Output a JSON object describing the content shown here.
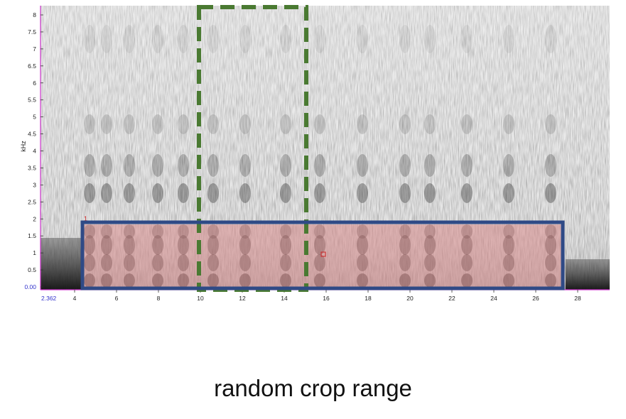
{
  "spectrogram": {
    "y_axis_label": "kHz",
    "y_ticks": [
      "8",
      "7.5",
      "7",
      "6.5",
      "6",
      "5.5",
      "5",
      "4.5",
      "4",
      "3.5",
      "3",
      "2.5",
      "2",
      "1.5",
      "1",
      "0.5",
      "0.00"
    ],
    "x_start_label": "2.362",
    "x_ticks": [
      "4",
      "6",
      "8",
      "10",
      "12",
      "14",
      "16",
      "18",
      "20",
      "22",
      "24",
      "26",
      "28"
    ],
    "selection_marker": "1",
    "axis_color": "#cc33cc",
    "start_label_color": "#3333cc"
  },
  "annotations": {
    "crop_range_color": "#2f4a86",
    "window_color": "#4a7a32",
    "brace_color": "#4472c4",
    "highlight_color": "#e8a0a0"
  },
  "caption": "random crop range"
}
